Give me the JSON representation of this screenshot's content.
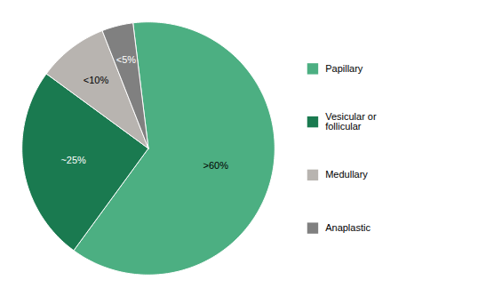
{
  "chart_data": {
    "type": "pie",
    "categories": [
      "Papillary",
      "Vesicular or\nfollicular",
      "Medullary",
      "Anaplastic"
    ],
    "values": [
      62,
      25,
      9,
      4
    ],
    "value_labels": [
      ">60%",
      "~25%",
      "<10%",
      "<5%"
    ],
    "colors": [
      "#4CAF82",
      "#1A7A50",
      "#B8B4B0",
      "#808080"
    ],
    "data_labels": true,
    "legend": "right"
  }
}
